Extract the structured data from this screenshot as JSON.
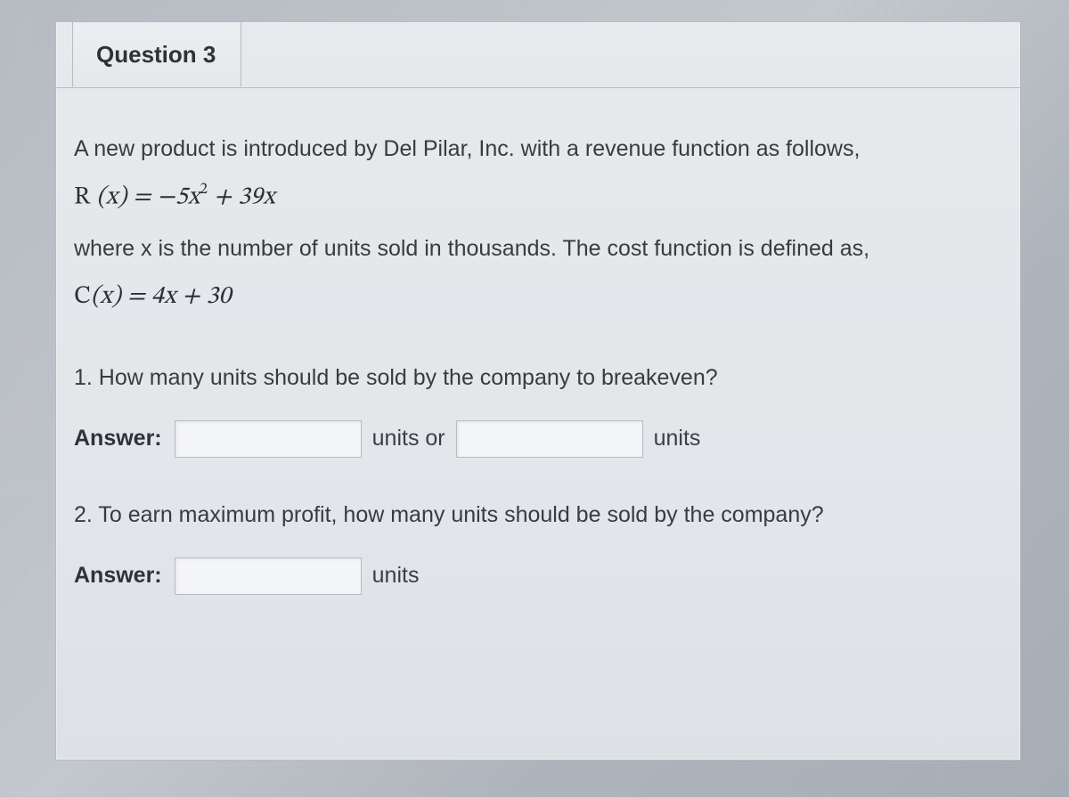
{
  "header": {
    "title": "Question 3"
  },
  "body": {
    "intro": "A new product is introduced by Del Pilar, Inc. with a revenue function as follows,",
    "revenue_fn_html": "<span class='rm'>R</span> (x) = &minus;5x<sup>2</sup> + 39x",
    "cost_intro": "where x is the number of units sold in thousands. The cost function is defined as,",
    "cost_fn_html": "<span class='rm'>C</span>(x) = 4x + 30"
  },
  "q1": {
    "prompt": "1. How many units should be sold by the company to breakeven?",
    "answer_label": "Answer:",
    "value1": "",
    "sep": "units or",
    "value2": "",
    "trail": "units"
  },
  "q2": {
    "prompt": "2. To earn maximum profit, how many units should be sold by the company?",
    "answer_label": "Answer:",
    "value": "",
    "trail": "units"
  }
}
